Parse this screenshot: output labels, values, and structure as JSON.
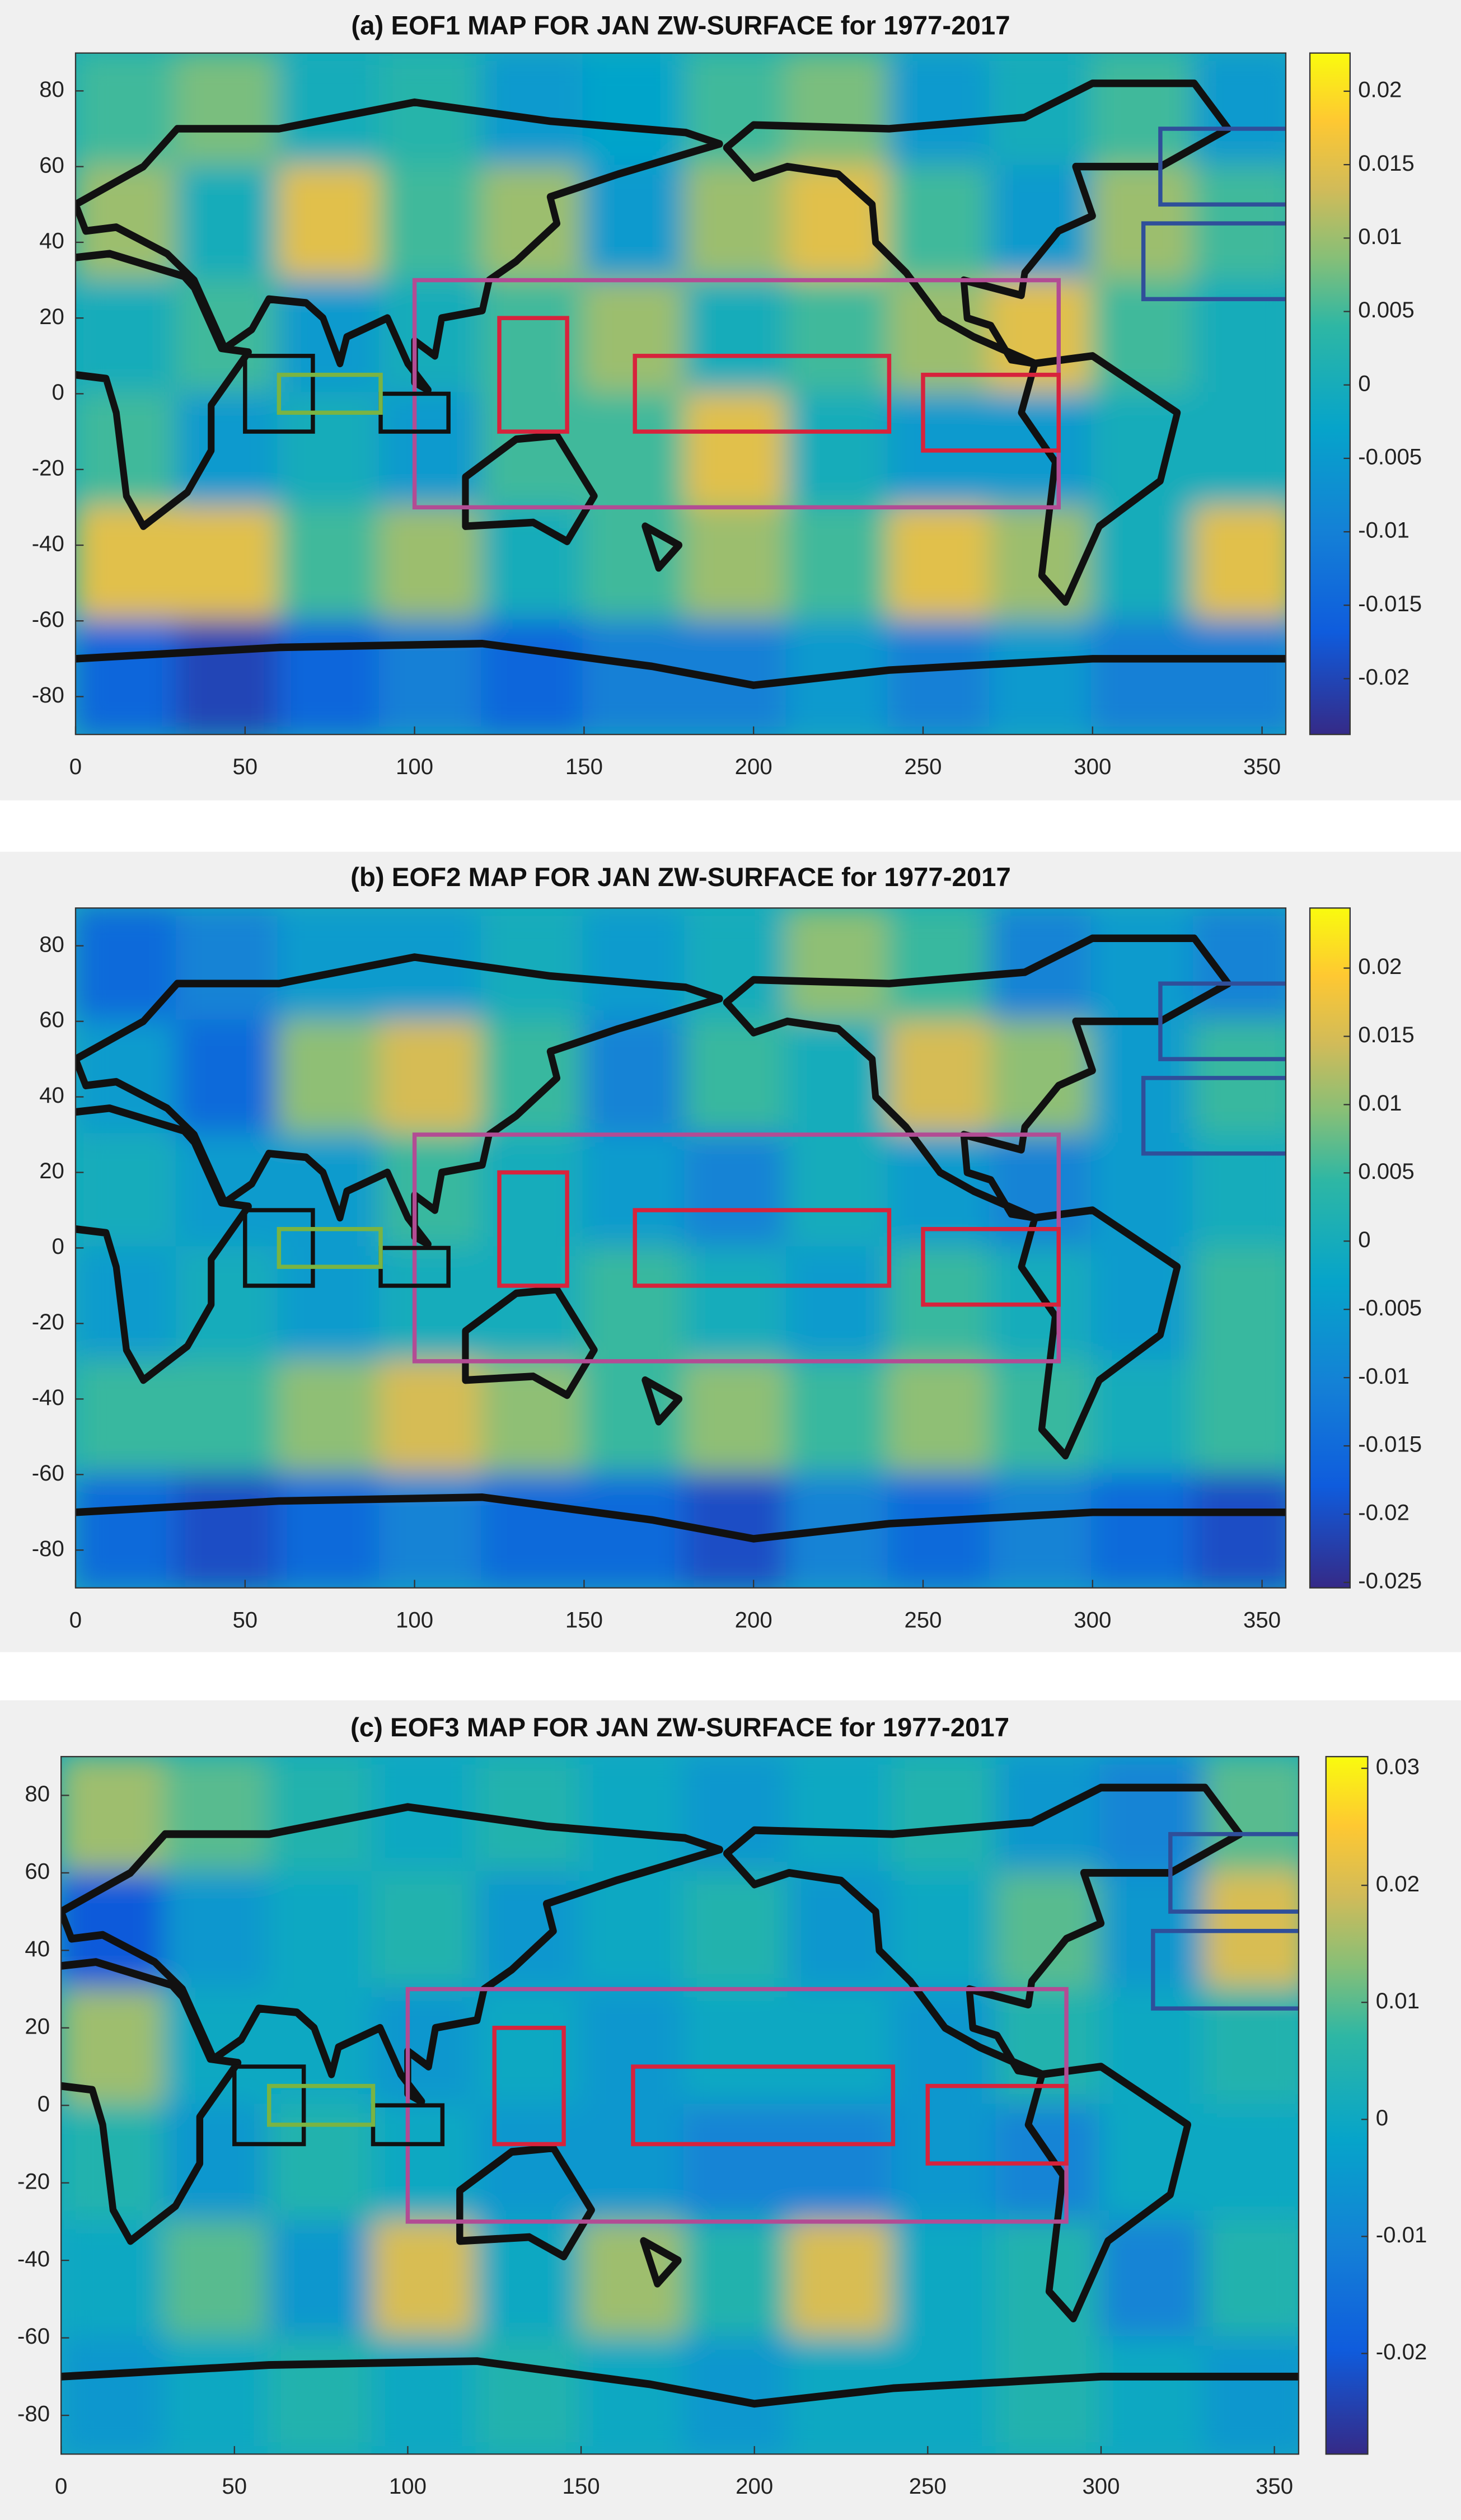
{
  "chart_data": [
    {
      "type": "heatmap",
      "title": "(a) EOF1 MAP FOR JAN ZW-SURFACE for 1977-2017",
      "x": [
        15,
        45,
        75,
        105,
        135,
        165,
        195,
        225,
        255,
        285,
        315,
        345
      ],
      "y": [
        75,
        45,
        15,
        -15,
        -45,
        -75
      ],
      "z": [
        [
          0.005,
          0.008,
          0.0,
          0.003,
          -0.005,
          -0.003,
          0.005,
          0.008,
          -0.005,
          0.0,
          0.005,
          -0.005
        ],
        [
          0.01,
          0.0,
          0.015,
          0.005,
          0.01,
          -0.005,
          0.01,
          0.015,
          0.005,
          -0.005,
          0.01,
          0.005
        ],
        [
          0.0,
          0.005,
          -0.005,
          0.0,
          0.005,
          0.01,
          0.0,
          0.005,
          0.01,
          0.015,
          0.005,
          0.0
        ],
        [
          0.005,
          -0.005,
          0.0,
          -0.005,
          0.005,
          0.005,
          0.015,
          0.0,
          -0.005,
          -0.005,
          0.0,
          0.0
        ],
        [
          0.015,
          0.015,
          0.005,
          0.01,
          0.0,
          0.005,
          0.01,
          0.005,
          0.015,
          0.01,
          0.0,
          0.015
        ],
        [
          -0.015,
          -0.02,
          -0.015,
          -0.01,
          -0.015,
          -0.01,
          -0.01,
          -0.005,
          -0.01,
          -0.005,
          -0.01,
          -0.01
        ]
      ],
      "xlim": [
        0,
        357
      ],
      "ylim": [
        -90,
        90
      ],
      "xticks": [
        0,
        50,
        100,
        150,
        200,
        250,
        300,
        350
      ],
      "yticks": [
        -80,
        -60,
        -40,
        -20,
        0,
        20,
        40,
        60,
        80
      ],
      "clim": [
        -0.0238,
        0.0226
      ],
      "cticks": [
        -0.02,
        -0.015,
        -0.01,
        -0.005,
        0,
        0.005,
        0.01,
        0.015,
        0.02
      ],
      "regions": [
        {
          "lon": [
            100,
            290
          ],
          "lat": [
            -30,
            30
          ],
          "color": "#b24c94"
        },
        {
          "lon": [
            125,
            145
          ],
          "lat": [
            -10,
            20
          ],
          "color": "#d7233c"
        },
        {
          "lon": [
            165,
            240
          ],
          "lat": [
            -10,
            10
          ],
          "color": "#d7233c"
        },
        {
          "lon": [
            250,
            290
          ],
          "lat": [
            -15,
            5
          ],
          "color": "#d7233c"
        },
        {
          "lon": [
            50,
            70
          ],
          "lat": [
            -10,
            10
          ],
          "color": "#111111"
        },
        {
          "lon": [
            90,
            110
          ],
          "lat": [
            -10,
            0
          ],
          "color": "#111111"
        },
        {
          "lon": [
            60,
            90
          ],
          "lat": [
            -5,
            5
          ],
          "color": "#7ab443"
        },
        {
          "lon": [
            320,
            360
          ],
          "lat": [
            50,
            70
          ],
          "color": "#2f4f9a"
        },
        {
          "lon": [
            315,
            360
          ],
          "lat": [
            25,
            45
          ],
          "color": "#2f4f9a"
        }
      ]
    },
    {
      "type": "heatmap",
      "title": "(b) EOF2 MAP FOR JAN ZW-SURFACE for 1977-2017",
      "x": [
        15,
        45,
        75,
        105,
        135,
        165,
        195,
        225,
        255,
        285,
        315,
        345
      ],
      "y": [
        75,
        45,
        15,
        -15,
        -45,
        -75
      ],
      "z": [
        [
          -0.015,
          -0.01,
          -0.005,
          -0.005,
          0.0,
          -0.005,
          0.0,
          0.01,
          0.005,
          -0.01,
          -0.005,
          -0.01
        ],
        [
          -0.005,
          -0.015,
          0.01,
          0.015,
          0.005,
          -0.01,
          0.005,
          0.0,
          0.015,
          0.01,
          -0.005,
          0.005
        ],
        [
          0.0,
          -0.005,
          -0.005,
          0.005,
          0.0,
          -0.005,
          -0.01,
          0.0,
          -0.005,
          -0.01,
          -0.005,
          0.0
        ],
        [
          -0.005,
          0.0,
          -0.005,
          0.0,
          0.0,
          0.005,
          0.0,
          -0.005,
          0.005,
          0.0,
          -0.005,
          0.005
        ],
        [
          0.005,
          0.005,
          0.01,
          0.015,
          0.01,
          0.005,
          0.01,
          0.005,
          0.01,
          0.005,
          0.0,
          0.005
        ],
        [
          -0.015,
          -0.02,
          -0.015,
          -0.01,
          -0.015,
          -0.015,
          -0.02,
          -0.01,
          -0.015,
          -0.01,
          -0.015,
          -0.02
        ]
      ],
      "xlim": [
        0,
        357
      ],
      "ylim": [
        -90,
        90
      ],
      "xticks": [
        0,
        50,
        100,
        150,
        200,
        250,
        300,
        350
      ],
      "yticks": [
        -80,
        -60,
        -40,
        -20,
        0,
        20,
        40,
        60,
        80
      ],
      "clim": [
        -0.0254,
        0.0244
      ],
      "cticks": [
        -0.025,
        -0.02,
        -0.015,
        -0.01,
        -0.005,
        0,
        0.005,
        0.01,
        0.015,
        0.02
      ],
      "regions": [
        {
          "lon": [
            100,
            290
          ],
          "lat": [
            -30,
            30
          ],
          "color": "#b24c94"
        },
        {
          "lon": [
            125,
            145
          ],
          "lat": [
            -10,
            20
          ],
          "color": "#d7233c"
        },
        {
          "lon": [
            165,
            240
          ],
          "lat": [
            -10,
            10
          ],
          "color": "#d7233c"
        },
        {
          "lon": [
            250,
            290
          ],
          "lat": [
            -15,
            5
          ],
          "color": "#d7233c"
        },
        {
          "lon": [
            50,
            70
          ],
          "lat": [
            -10,
            10
          ],
          "color": "#111111"
        },
        {
          "lon": [
            90,
            110
          ],
          "lat": [
            -10,
            0
          ],
          "color": "#111111"
        },
        {
          "lon": [
            60,
            90
          ],
          "lat": [
            -5,
            5
          ],
          "color": "#7ab443"
        },
        {
          "lon": [
            320,
            360
          ],
          "lat": [
            50,
            70
          ],
          "color": "#2f4f9a"
        },
        {
          "lon": [
            315,
            360
          ],
          "lat": [
            25,
            45
          ],
          "color": "#2f4f9a"
        }
      ]
    },
    {
      "type": "heatmap",
      "title": "(c) EOF3 MAP FOR JAN ZW-SURFACE for 1977-2017",
      "x": [
        15,
        45,
        75,
        105,
        135,
        165,
        195,
        225,
        255,
        285,
        315,
        345
      ],
      "y": [
        75,
        45,
        15,
        -15,
        -45,
        -75
      ],
      "z": [
        [
          0.015,
          0.01,
          0.005,
          0.0,
          0.005,
          0.0,
          -0.005,
          0.0,
          0.005,
          -0.005,
          -0.01,
          0.01
        ],
        [
          -0.02,
          -0.005,
          0.0,
          0.005,
          -0.005,
          0.0,
          0.005,
          -0.005,
          0.0,
          0.01,
          -0.005,
          0.02
        ],
        [
          0.015,
          0.0,
          0.0,
          -0.005,
          0.0,
          -0.005,
          0.0,
          0.0,
          -0.005,
          0.005,
          0.0,
          0.005
        ],
        [
          0.005,
          -0.005,
          0.005,
          0.0,
          -0.005,
          -0.005,
          -0.01,
          -0.01,
          -0.005,
          -0.01,
          0.0,
          0.0
        ],
        [
          0.0,
          0.01,
          -0.005,
          0.02,
          0.0,
          0.015,
          0.005,
          0.02,
          0.0,
          0.005,
          -0.01,
          0.005
        ],
        [
          -0.005,
          0.0,
          0.005,
          0.0,
          0.005,
          0.0,
          -0.005,
          0.0,
          0.0,
          0.005,
          0.0,
          -0.005
        ]
      ],
      "xlim": [
        0,
        357
      ],
      "ylim": [
        -90,
        90
      ],
      "xticks": [
        0,
        50,
        100,
        150,
        200,
        250,
        300,
        350
      ],
      "yticks": [
        -80,
        -60,
        -40,
        -20,
        0,
        20,
        40,
        60,
        80
      ],
      "clim": [
        -0.0286,
        0.031
      ],
      "cticks": [
        -0.02,
        -0.01,
        0,
        0.01,
        0.02,
        0.03
      ],
      "regions": [
        {
          "lon": [
            100,
            290
          ],
          "lat": [
            -30,
            30
          ],
          "color": "#b24c94"
        },
        {
          "lon": [
            125,
            145
          ],
          "lat": [
            -10,
            20
          ],
          "color": "#d7233c"
        },
        {
          "lon": [
            165,
            240
          ],
          "lat": [
            -10,
            10
          ],
          "color": "#d7233c"
        },
        {
          "lon": [
            250,
            290
          ],
          "lat": [
            -15,
            5
          ],
          "color": "#d7233c"
        },
        {
          "lon": [
            50,
            70
          ],
          "lat": [
            -10,
            10
          ],
          "color": "#111111"
        },
        {
          "lon": [
            90,
            110
          ],
          "lat": [
            -10,
            0
          ],
          "color": "#111111"
        },
        {
          "lon": [
            60,
            90
          ],
          "lat": [
            -5,
            5
          ],
          "color": "#7ab443"
        },
        {
          "lon": [
            320,
            360
          ],
          "lat": [
            50,
            70
          ],
          "color": "#2f4f9a"
        },
        {
          "lon": [
            315,
            360
          ],
          "lat": [
            25,
            45
          ],
          "color": "#2f4f9a"
        }
      ]
    }
  ]
}
